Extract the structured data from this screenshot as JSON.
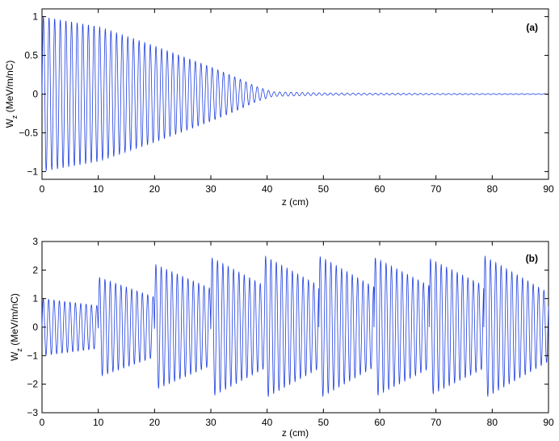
{
  "chart_data": [
    {
      "type": "line",
      "panel_label": "(a)",
      "xlabel": "z (cm)",
      "ylabel": "W",
      "ylabel_sub": "z",
      "ylabel_unit": "(MeV/m/nC)",
      "xlim": [
        0,
        90
      ],
      "ylim": [
        -1.1,
        1.1
      ],
      "xticks": [
        0,
        10,
        20,
        30,
        40,
        50,
        60,
        70,
        80,
        90
      ],
      "yticks": [
        -1,
        -0.5,
        0,
        0.5,
        1
      ],
      "xtick_labels": [
        "0",
        "10",
        "20",
        "30",
        "40",
        "50",
        "60",
        "70",
        "80",
        "90"
      ],
      "ytick_labels": [
        "−1",
        "−0.5",
        "0",
        "0.5",
        "1"
      ],
      "grid": false,
      "line_color": "#1f3fe0",
      "oscillation_period_cm": 1.0,
      "envelope": [
        {
          "z": 0,
          "amplitude": 1.0
        },
        {
          "z": 10,
          "amplitude": 0.87
        },
        {
          "z": 20,
          "amplitude": 0.62
        },
        {
          "z": 30,
          "amplitude": 0.35
        },
        {
          "z": 35,
          "amplitude": 0.2
        },
        {
          "z": 38,
          "amplitude": 0.1
        },
        {
          "z": 41,
          "amplitude": 0.03
        },
        {
          "z": 50,
          "amplitude": 0.015
        },
        {
          "z": 70,
          "amplitude": 0.008
        },
        {
          "z": 90,
          "amplitude": 0.005
        }
      ]
    },
    {
      "type": "line",
      "panel_label": "(b)",
      "xlabel": "z (cm)",
      "ylabel": "W",
      "ylabel_sub": "z",
      "ylabel_unit": "(MeV/m/nC)",
      "xlim": [
        0,
        90
      ],
      "ylim": [
        -3,
        3
      ],
      "xticks": [
        0,
        10,
        20,
        30,
        40,
        50,
        60,
        70,
        80,
        90
      ],
      "yticks": [
        -3,
        -2,
        -1,
        0,
        1,
        2,
        3
      ],
      "xtick_labels": [
        "0",
        "10",
        "20",
        "30",
        "40",
        "50",
        "60",
        "70",
        "80",
        "90"
      ],
      "ytick_labels": [
        "−3",
        "−2",
        "−1",
        "0",
        "1",
        "2",
        "3"
      ],
      "grid": false,
      "line_color": "#1f3fe0",
      "oscillation_period_cm": 0.95,
      "segments": [
        {
          "z_start": 0,
          "z_end": 10,
          "amp_start": 1.0,
          "amp_end": 0.75
        },
        {
          "z_start": 10,
          "z_end": 20,
          "amp_start": 1.75,
          "amp_end": 1.05
        },
        {
          "z_start": 20,
          "z_end": 30,
          "amp_start": 2.2,
          "amp_end": 1.35
        },
        {
          "z_start": 30,
          "z_end": 39.5,
          "amp_start": 2.45,
          "amp_end": 1.45
        },
        {
          "z_start": 39.5,
          "z_end": 49.2,
          "amp_start": 2.5,
          "amp_end": 1.45
        },
        {
          "z_start": 49.2,
          "z_end": 59,
          "amp_start": 2.5,
          "amp_end": 1.4
        },
        {
          "z_start": 59,
          "z_end": 68.8,
          "amp_start": 2.45,
          "amp_end": 1.45
        },
        {
          "z_start": 68.8,
          "z_end": 78.5,
          "amp_start": 2.4,
          "amp_end": 1.45
        },
        {
          "z_start": 78.5,
          "z_end": 90,
          "amp_start": 2.5,
          "amp_end": 1.2
        }
      ]
    }
  ]
}
